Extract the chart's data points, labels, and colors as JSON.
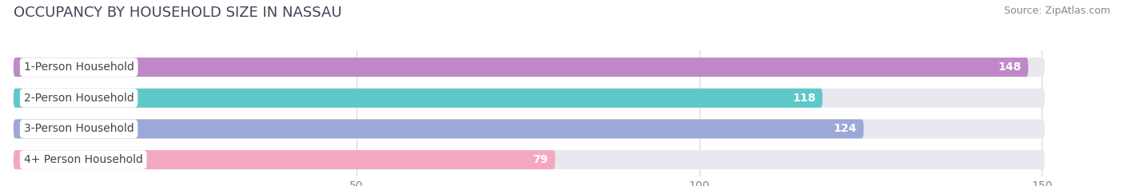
{
  "title": "OCCUPANCY BY HOUSEHOLD SIZE IN NASSAU",
  "source": "Source: ZipAtlas.com",
  "categories": [
    "1-Person Household",
    "2-Person Household",
    "3-Person Household",
    "4+ Person Household"
  ],
  "values": [
    148,
    118,
    124,
    79
  ],
  "bar_colors": [
    "#c088c8",
    "#5ec8c8",
    "#9ba8d8",
    "#f4a8c0"
  ],
  "bar_bg_color": "#e8e8ee",
  "value_label_color": "#ffffff",
  "xlim": [
    0,
    160
  ],
  "xlim_display": 150,
  "xticks": [
    50,
    100,
    150
  ],
  "title_fontsize": 13,
  "source_fontsize": 9,
  "bar_label_fontsize": 10,
  "value_fontsize": 10,
  "tick_fontsize": 10,
  "bar_height": 0.62,
  "background_color": "#ffffff",
  "label_color": "#444444"
}
